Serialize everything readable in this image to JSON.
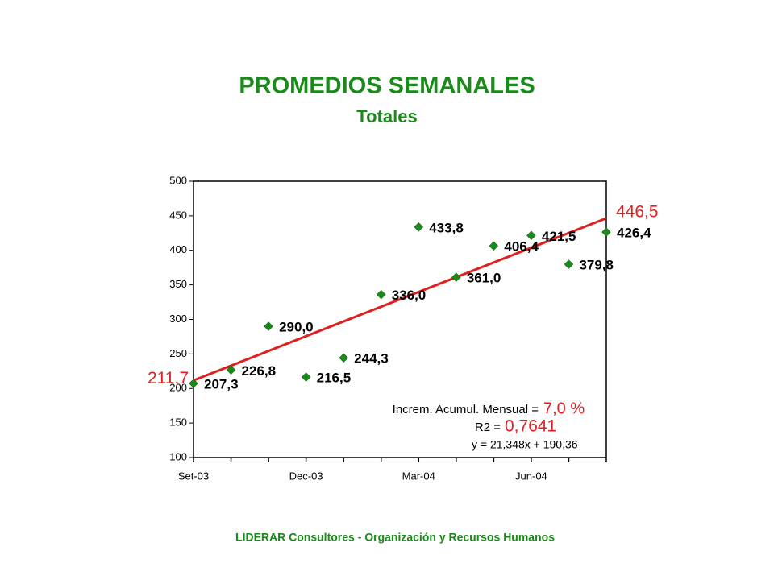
{
  "chart_data": {
    "type": "scatter",
    "title": "PROMEDIOS SEMANALES",
    "subtitle": "Totales",
    "categories": [
      "Set-03",
      null,
      null,
      "Dec-03",
      null,
      null,
      "Mar-04",
      null,
      null,
      "Jun-04",
      null,
      null
    ],
    "values": [
      207.3,
      226.8,
      290.0,
      216.5,
      244.3,
      336.0,
      433.8,
      361.0,
      406.4,
      421.5,
      379.8,
      426.4
    ],
    "value_labels": [
      "207,3",
      "226,8",
      "290,0",
      "216,5",
      "244,3",
      "336,0",
      "433,8",
      "361,0",
      "406,4",
      "421,5",
      "379,8",
      "426,4"
    ],
    "color": "#1a8a1a",
    "ylim": [
      100,
      500
    ],
    "yticks": [
      100,
      150,
      200,
      250,
      300,
      350,
      400,
      450,
      500
    ],
    "trendline": {
      "start": 211.7,
      "end": 446.5,
      "start_label": "211,7",
      "end_label": "446,5",
      "color": "#e02020",
      "equation": "y = 21,348x + 190,36"
    },
    "annotations": {
      "increment_label": "Increm. Acumul. Mensual =",
      "increment_value": "7,0 %",
      "r2_label": "R2 =",
      "r2_value": "0,7641"
    },
    "footer": "LIDERAR Consultores - Organización y Recursos Humanos"
  }
}
